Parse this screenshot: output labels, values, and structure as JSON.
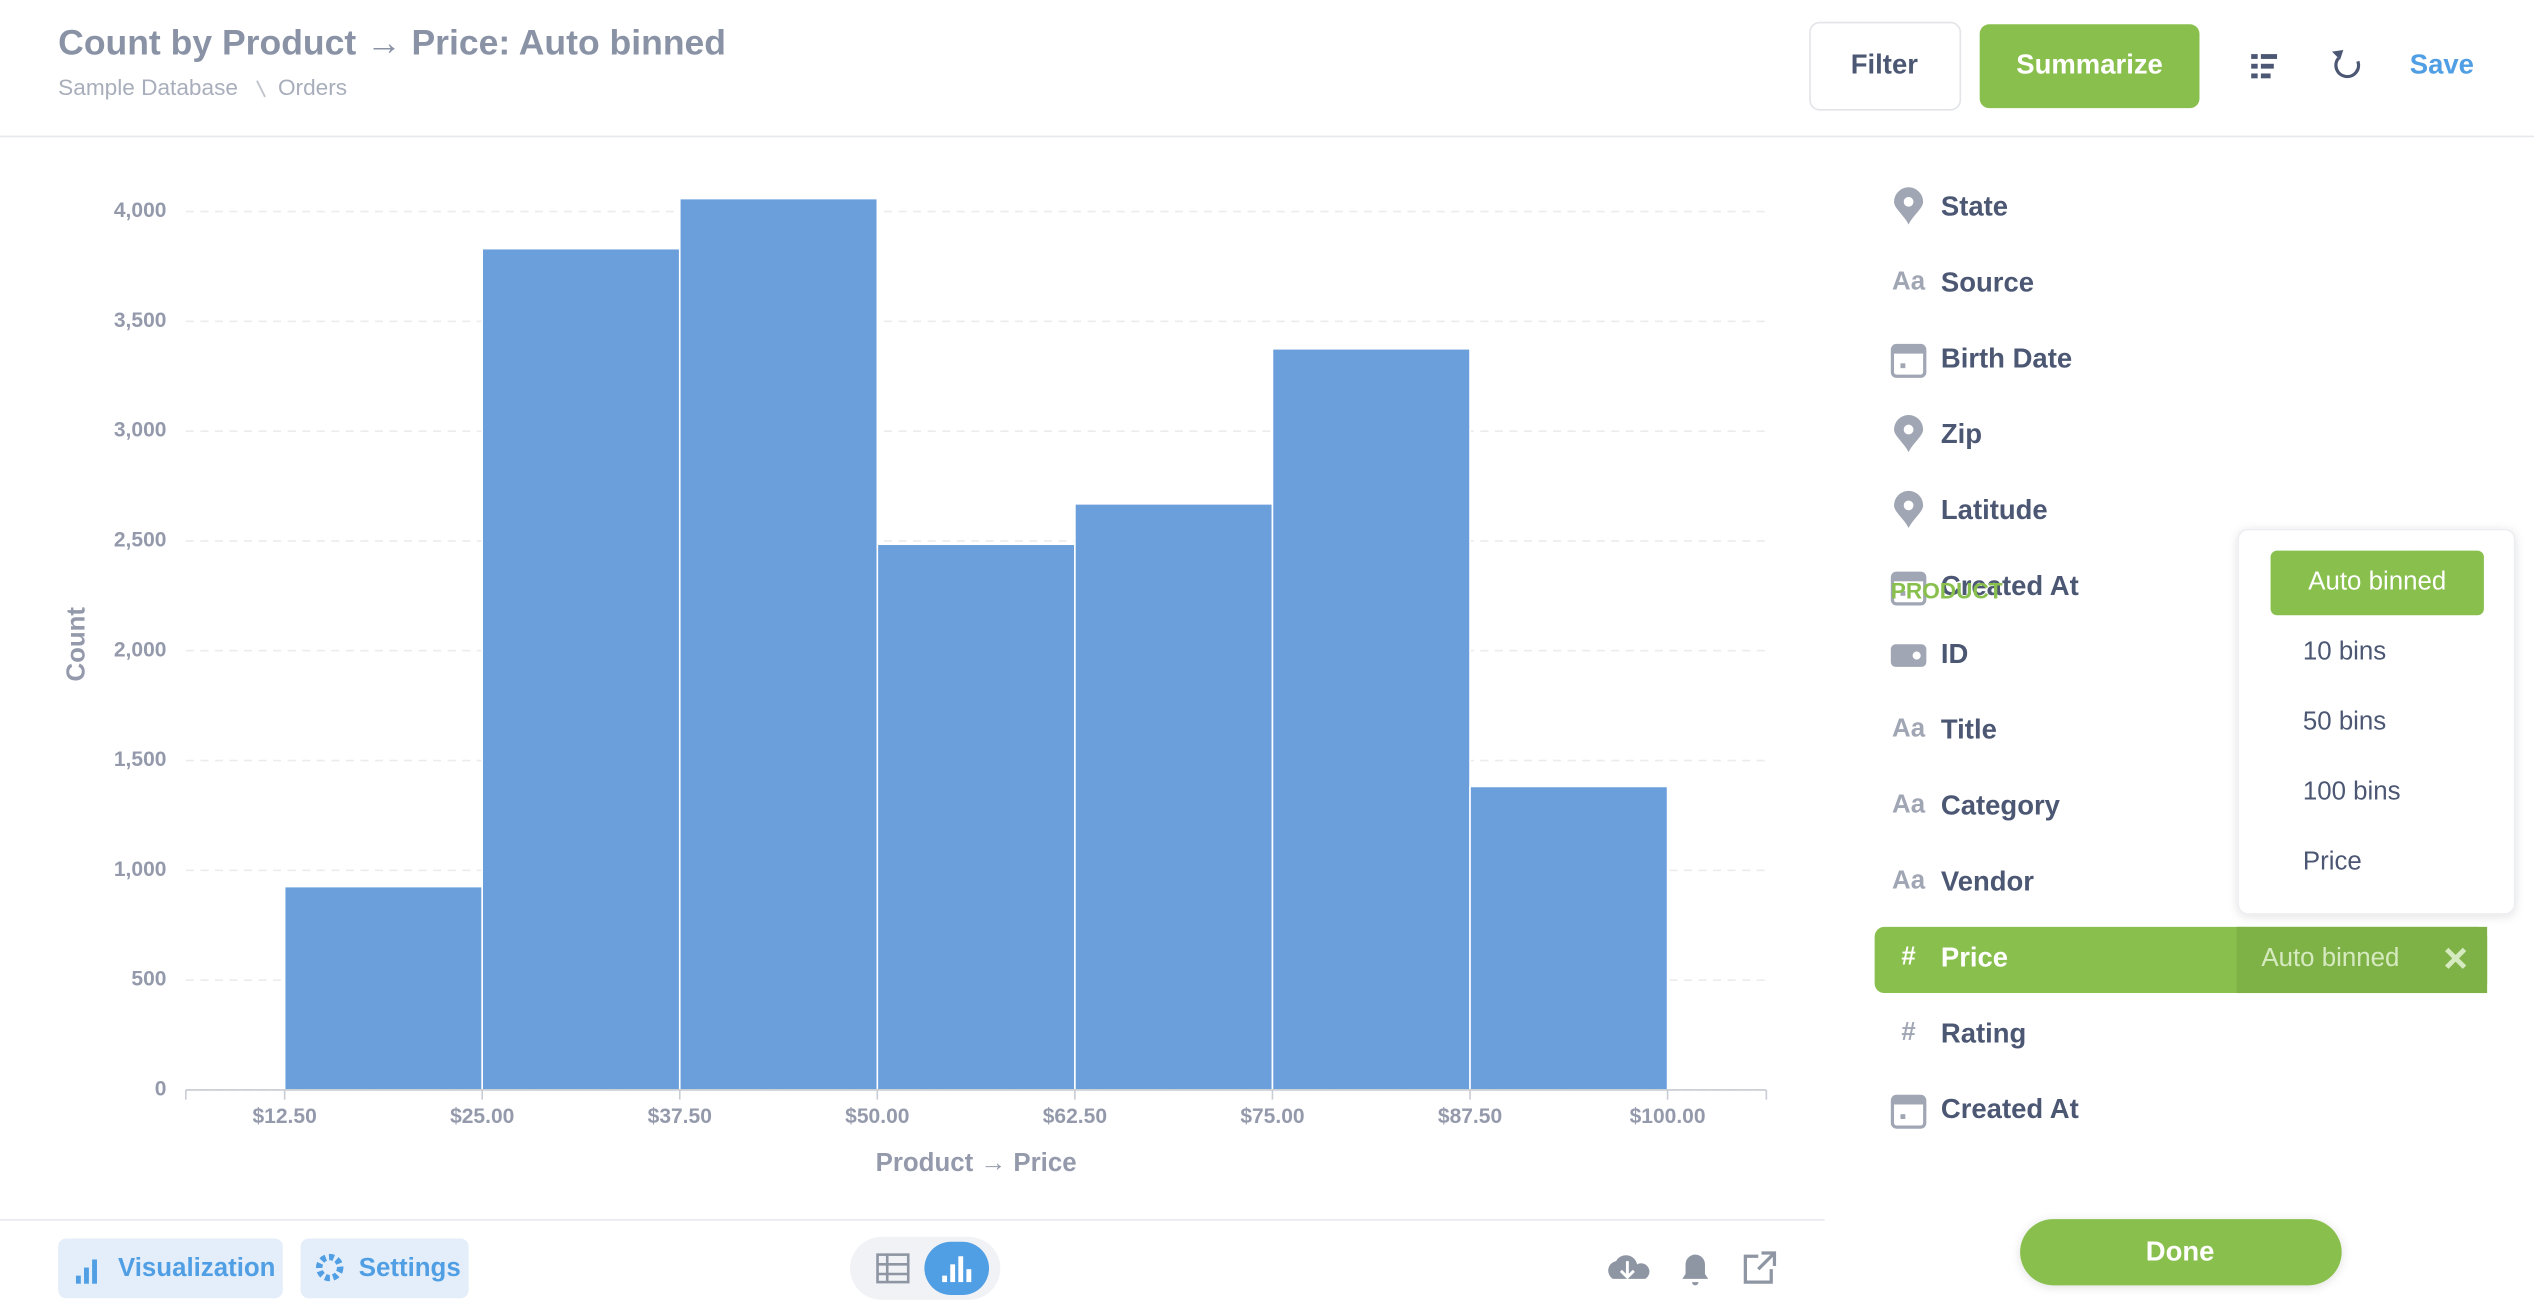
{
  "header": {
    "title": "Count by Product → Price: Auto binned",
    "breadcrumb": [
      "Sample Database",
      "Orders"
    ],
    "buttons": [
      "Filter",
      "Summarize",
      "Save"
    ]
  },
  "chart_data": {
    "type": "histogram",
    "bins": [
      12.5,
      25,
      37.5,
      50,
      62.5,
      75,
      87.5,
      100
    ],
    "counts": [
      926,
      3831,
      4059,
      2485,
      2669,
      3375,
      1382
    ],
    "color": "#6a9fdc",
    "xlabel": "Product → Price",
    "ylabel": "Count",
    "xlim": [
      6.25,
      106.25
    ],
    "ylim": [
      0,
      4000
    ],
    "xticks": [
      {
        "value": 12.5,
        "label": "$12.50"
      },
      {
        "value": 25,
        "label": "$25.00"
      },
      {
        "value": 37.5,
        "label": "$37.50"
      },
      {
        "value": 50,
        "label": "$50.00"
      },
      {
        "value": 62.5,
        "label": "$62.50"
      },
      {
        "value": 75,
        "label": "$75.00"
      },
      {
        "value": 87.5,
        "label": "$87.50"
      },
      {
        "value": 100,
        "label": "$100.00"
      }
    ],
    "yticks": [
      0,
      500,
      {
        "value": 1000,
        "label": "1,000"
      },
      {
        "value": 1500,
        "label": "1,500"
      },
      {
        "value": 2000,
        "label": "2,000"
      },
      {
        "value": 2500,
        "label": "2,500"
      },
      {
        "value": 3000,
        "label": "3,000"
      },
      {
        "value": 3500,
        "label": "3,500"
      },
      {
        "value": 4000,
        "label": "4,000"
      }
    ],
    "grid": true
  },
  "footer": {
    "buttons": [
      "Visualization",
      "Settings"
    ]
  },
  "sidebar": {
    "groups": [
      {
        "items": [
          {
            "label": "State"
          },
          {
            "icon": "Aa",
            "label": "Source"
          },
          {
            "label": "Birth Date"
          },
          {
            "label": "Zip"
          },
          {
            "label": "Latitude"
          },
          {
            "label": "Created At"
          }
        ]
      },
      {
        "title": "PRODUCT",
        "items": [
          {
            "label": "ID"
          },
          {
            "icon": "Aa",
            "label": "Title"
          },
          {
            "icon": "Aa",
            "label": "Category"
          },
          {
            "icon": "Aa",
            "label": "Vendor"
          },
          {
            "icon": "#",
            "label": "Price",
            "binning": "Auto binned"
          },
          {
            "icon": "#",
            "label": "Rating"
          },
          {
            "label": "Created At"
          }
        ]
      }
    ],
    "done": "Done"
  },
  "popup": {
    "options": [
      "Auto binned",
      "10 bins",
      "50 bins",
      "100 bins",
      "Price"
    ],
    "selected": 0
  }
}
